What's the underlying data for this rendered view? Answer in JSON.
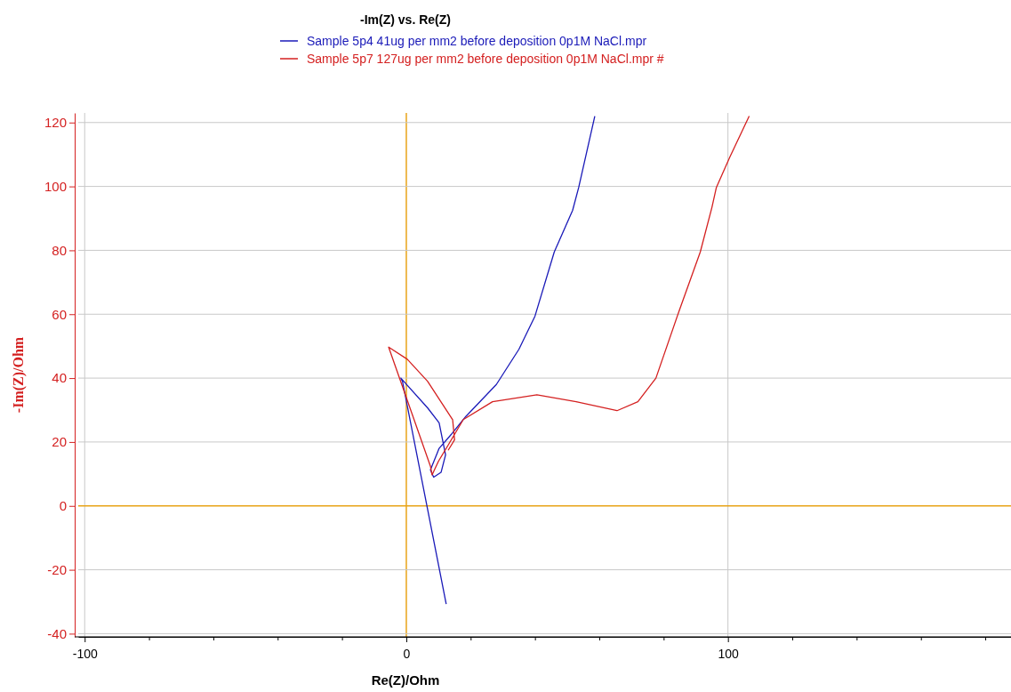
{
  "chart_data": {
    "type": "line",
    "title": "-Im(Z) vs. Re(Z)",
    "xlabel": "Re(Z)/Ohm",
    "ylabel": "-Im(Z)/Ohm",
    "xlim": [
      -102,
      188
    ],
    "xticks": [
      -100,
      {
        "value": -80,
        "label": null
      },
      {
        "value": -60,
        "label": null
      },
      {
        "value": -40,
        "label": null
      },
      {
        "value": -20,
        "label": null
      },
      0,
      {
        "value": 20,
        "label": null
      },
      {
        "value": 40,
        "label": null
      },
      {
        "value": 60,
        "label": null
      },
      {
        "value": 80,
        "label": null
      },
      100,
      {
        "value": 120,
        "label": null
      },
      {
        "value": 140,
        "label": null
      },
      {
        "value": 160,
        "label": null
      },
      {
        "value": 180,
        "label": null
      }
    ],
    "ylim": [
      -41,
      123
    ],
    "yticks": [
      -40,
      -20,
      0,
      20,
      40,
      60,
      80,
      100,
      120
    ],
    "grid": true,
    "legend": "top",
    "marker": "none",
    "line_style": "solid",
    "series": [
      {
        "name": "Sample 5p4 41ug per mm2 before deposition 0p1M NaCl.mpr",
        "color": "#1a1ab8",
        "x": [
          12.4,
          -1.2,
          -1.7,
          6.6,
          10.2,
          12.2,
          10.8,
          8.5,
          7.5,
          10.2,
          14,
          18.5,
          28,
          35,
          40,
          46,
          51.7,
          53.6,
          58.6
        ],
        "values": [
          -30.7,
          39,
          40,
          30.7,
          26,
          16,
          10.5,
          9,
          11.3,
          18,
          22.4,
          28,
          38,
          49,
          59.4,
          79.5,
          92.5,
          99.7,
          122
        ]
      },
      {
        "name": "Sample 5p7 127ug per mm2 before deposition 0p1M NaCl.mpr #",
        "color": "#d42020",
        "x": [
          13,
          15,
          14.4,
          6.6,
          0.3,
          -5.5,
          7.5,
          8,
          10,
          13,
          17.7,
          26.8,
          40.6,
          52.8,
          65.5,
          72,
          77.6,
          84.8,
          91.4,
          95,
          96.4,
          100.5,
          106.6
        ],
        "values": [
          17.4,
          20.7,
          27,
          39,
          45.9,
          49.7,
          12.4,
          9.7,
          14,
          19,
          27,
          32.6,
          34.8,
          32.6,
          29.8,
          32.6,
          40,
          61,
          79.5,
          93.4,
          99.7,
          109,
          122
        ]
      }
    ]
  }
}
